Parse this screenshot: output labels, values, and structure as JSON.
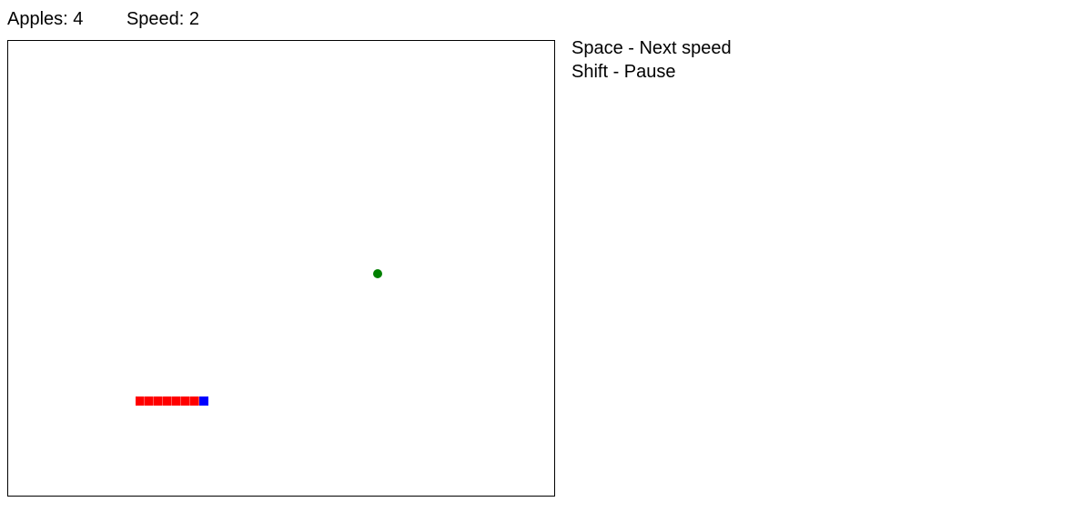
{
  "status": {
    "apples_label": "Apples: 4",
    "speed_label": "Speed: 2"
  },
  "controls": {
    "items": [
      "Space - Next speed",
      "Shift - Pause"
    ]
  },
  "colors": {
    "snake_body": "#ff0000",
    "snake_head": "#0000ff",
    "apple": "#008000",
    "board_border": "#000000"
  }
}
